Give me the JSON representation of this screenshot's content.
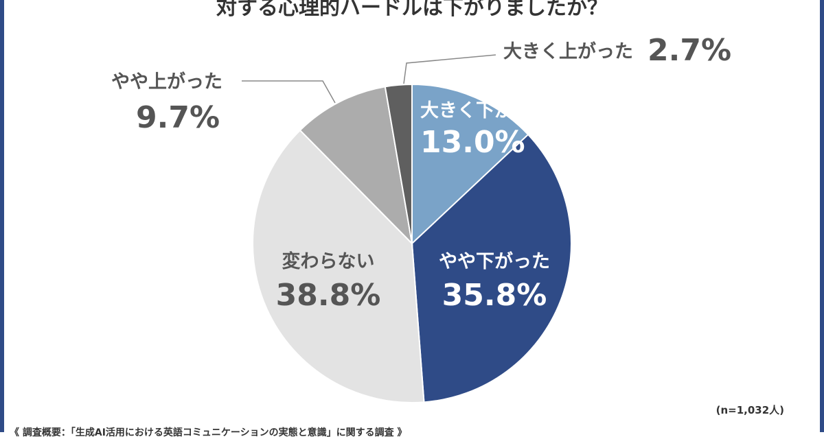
{
  "title": "対する心理的ハードルは下がりましたか？",
  "sample_size": "(n=1,032人)",
  "footer": "《 調査概要：「生成AI活用における英語コミュニケーションの実態と意識」に関する調査 》",
  "chart_data": {
    "type": "pie",
    "start": "12 o'clock, clockwise",
    "slices": [
      {
        "label": "大きく下がった",
        "value": 13.0,
        "display": "13.0%",
        "color": "#7aa3c8"
      },
      {
        "label": "やや下がった",
        "value": 35.8,
        "display": "35.8%",
        "color": "#2f4b87"
      },
      {
        "label": "変わらない",
        "value": 38.8,
        "display": "38.8%",
        "color": "#e3e3e3"
      },
      {
        "label": "やや上がった",
        "value": 9.7,
        "display": "9.7%",
        "color": "#acacac"
      },
      {
        "label": "大きく上がった",
        "value": 2.7,
        "display": "2.7%",
        "color": "#5f5f5f"
      }
    ]
  }
}
